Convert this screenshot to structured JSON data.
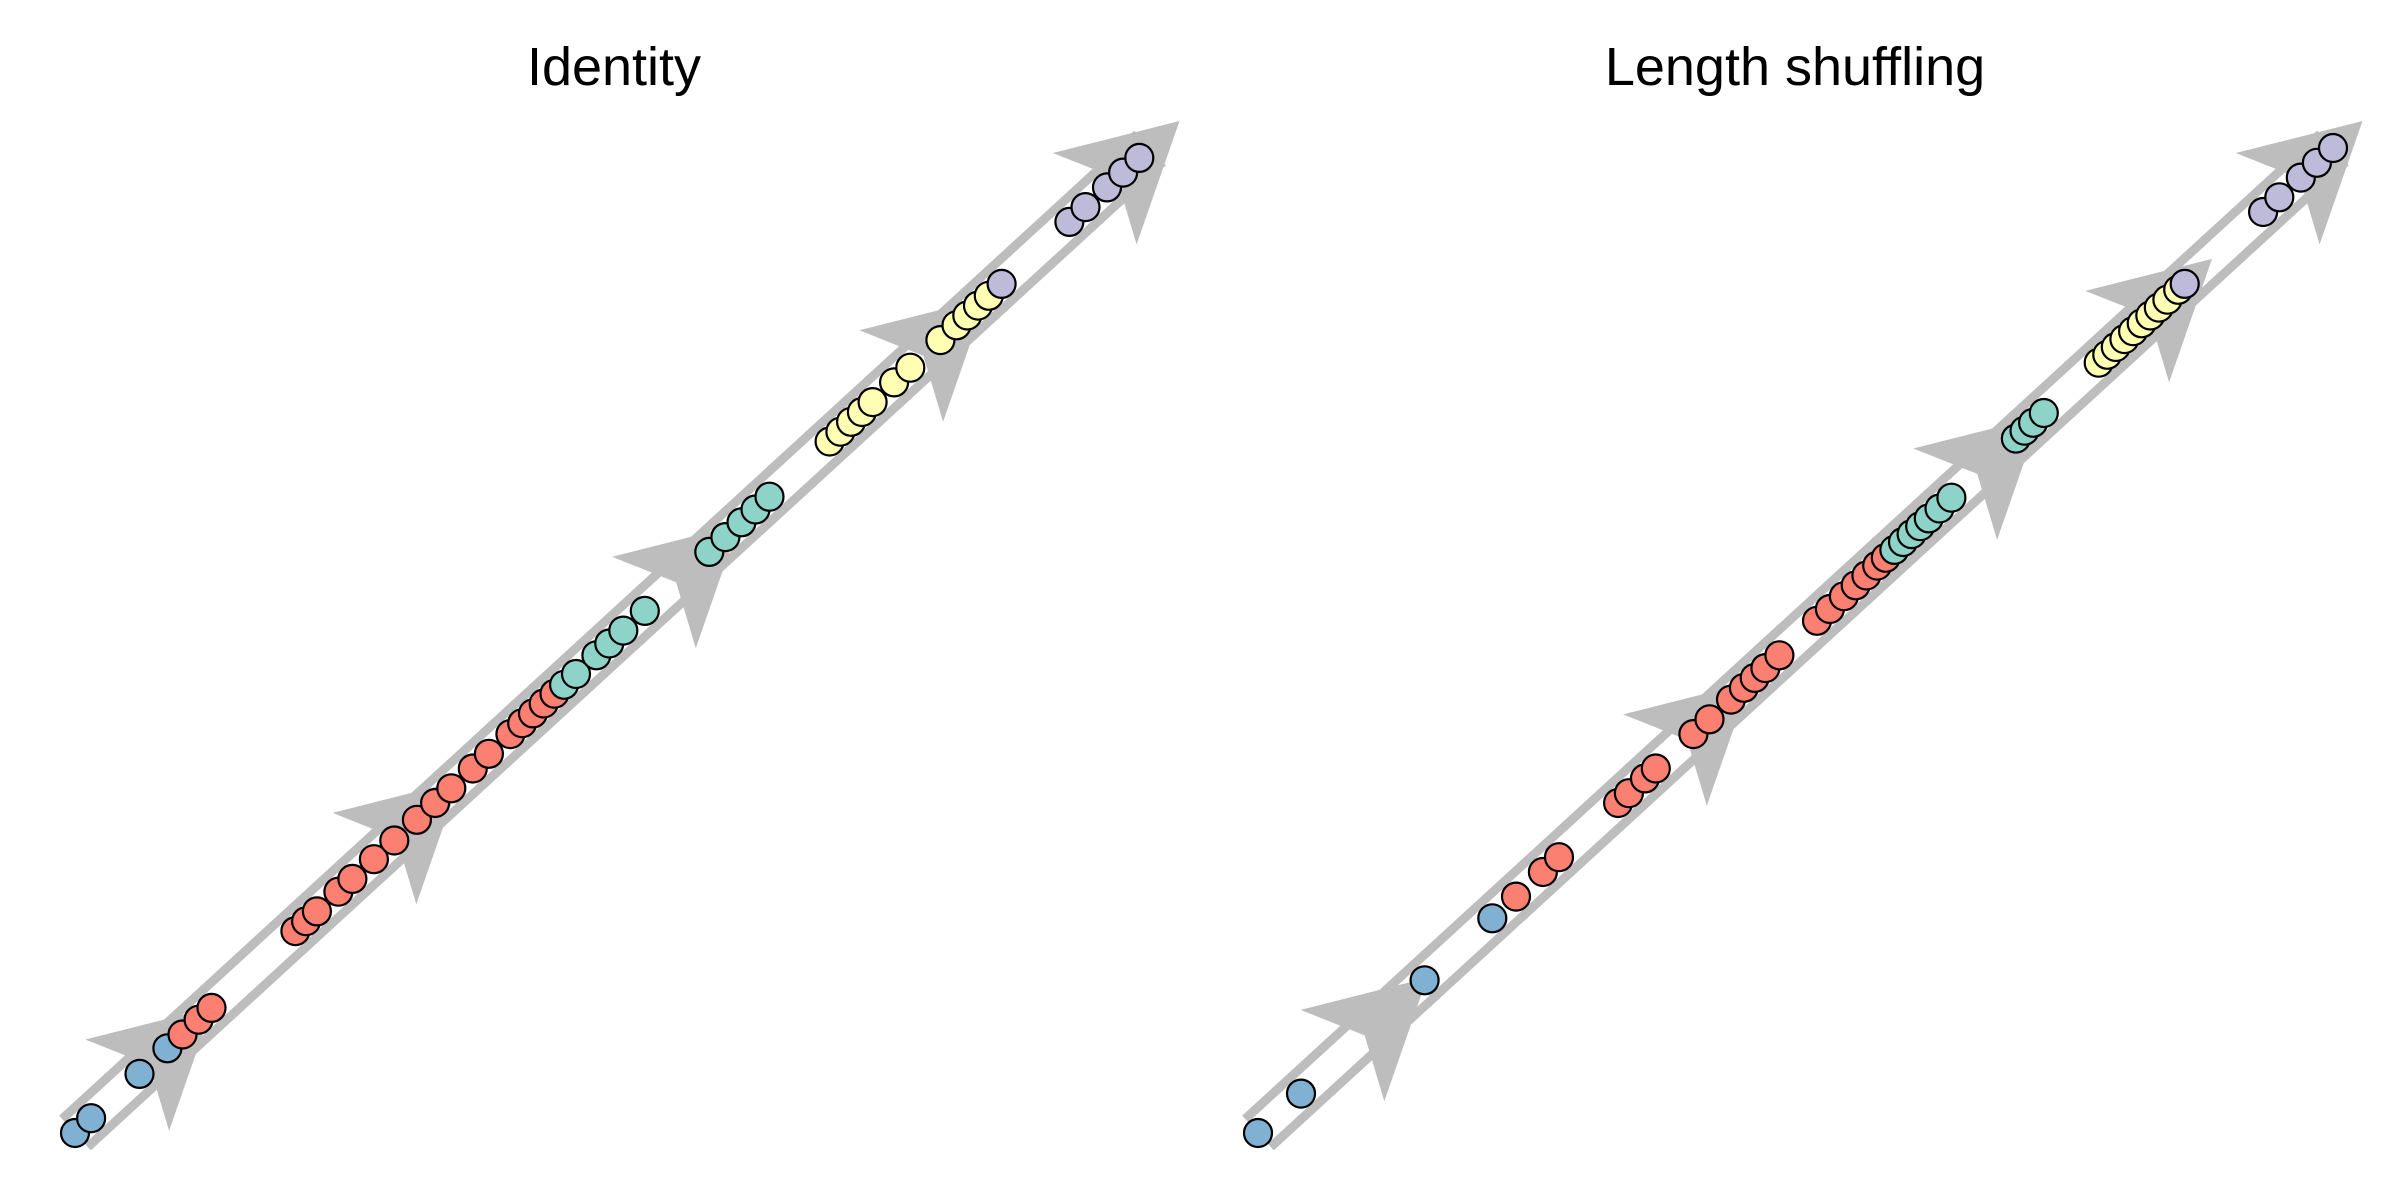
{
  "panels": [
    {
      "title": "Identity",
      "milestone_positions": [
        0.1,
        0.33,
        0.59,
        0.82,
        1.0
      ],
      "cell_groups": [
        {
          "color": "blue",
          "positions": [
            0.0,
            0.015,
            0.06,
            0.086
          ]
        },
        {
          "color": "salmon",
          "positions": [
            0.1,
            0.115,
            0.127,
            0.205,
            0.215,
            0.225,
            0.245,
            0.258,
            0.278,
            0.297,
            0.318,
            0.335,
            0.35,
            0.37,
            0.385,
            0.405,
            0.416,
            0.426,
            0.436,
            0.446
          ]
        },
        {
          "color": "aqua",
          "positions": [
            0.455,
            0.466,
            0.485,
            0.497,
            0.51,
            0.53,
            0.59,
            0.605,
            0.62,
            0.633,
            0.646
          ]
        },
        {
          "color": "yellow",
          "positions": [
            0.702,
            0.712,
            0.722,
            0.732,
            0.742,
            0.762,
            0.777,
            0.805,
            0.82,
            0.83,
            0.84,
            0.85
          ]
        },
        {
          "color": "lavender",
          "positions": [
            0.862,
            0.925,
            0.94,
            0.96,
            0.975,
            0.99
          ]
        }
      ]
    },
    {
      "title": "Length shuffling",
      "milestone_positions": [
        0.13,
        0.43,
        0.7,
        0.86,
        1.0
      ],
      "cell_groups": [
        {
          "color": "blue",
          "positions": [
            0.0,
            0.04,
            0.155,
            0.218
          ]
        },
        {
          "color": "salmon",
          "positions": [
            0.24,
            0.265,
            0.28,
            0.335,
            0.345,
            0.36,
            0.37,
            0.405,
            0.42,
            0.44,
            0.452,
            0.462,
            0.472,
            0.485,
            0.52,
            0.532,
            0.545,
            0.556,
            0.566,
            0.576,
            0.584
          ]
        },
        {
          "color": "aqua",
          "positions": [
            0.592,
            0.6,
            0.608,
            0.616,
            0.624,
            0.634,
            0.645,
            0.705,
            0.713,
            0.721,
            0.731
          ]
        },
        {
          "color": "yellow",
          "positions": [
            0.782,
            0.79,
            0.798,
            0.806,
            0.814,
            0.822,
            0.83,
            0.838,
            0.846,
            0.856
          ]
        },
        {
          "color": "lavender",
          "positions": [
            0.862,
            0.935,
            0.95,
            0.97,
            0.985,
            1.0
          ]
        }
      ]
    }
  ],
  "colors": {
    "rail": "#bdbdbd",
    "arrow": "#bdbdbd",
    "blue": "#80b1d3",
    "salmon": "#fb8072",
    "aqua": "#8dd3c7",
    "yellow": "#ffffb3",
    "lavender": "#bebada",
    "outline": "#000000"
  }
}
